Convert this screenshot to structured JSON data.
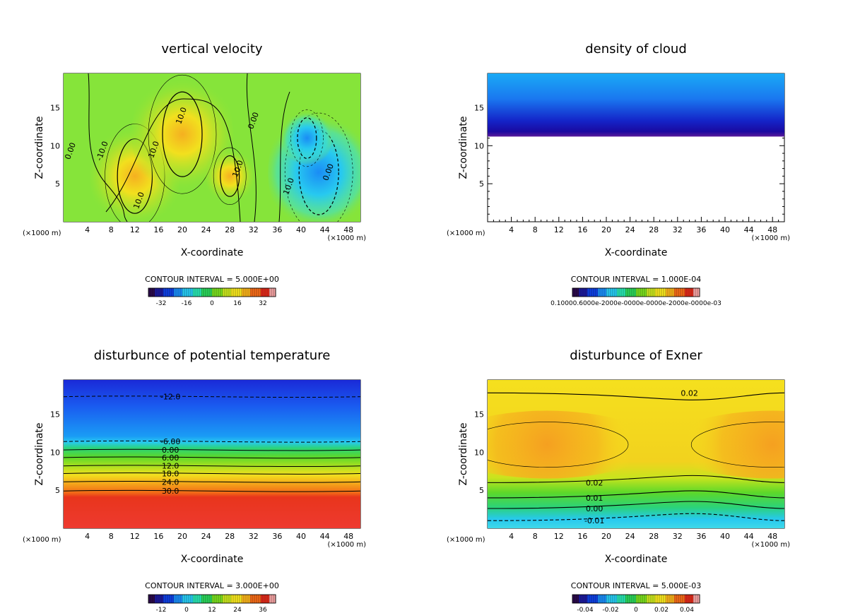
{
  "chart_data": [
    {
      "type": "heatmap",
      "title": "vertical velocity",
      "xlabel": "X-coordinate",
      "ylabel": "Z-coordinate",
      "x_unit": "(×1000 m)",
      "xlim": [
        0,
        50
      ],
      "ylim": [
        0,
        19.5
      ],
      "x_ticks": [
        4,
        8,
        12,
        16,
        20,
        24,
        28,
        32,
        36,
        40,
        44,
        48
      ],
      "y_ticks": [
        5,
        10,
        15
      ],
      "contour_interval": "CONTOUR INTERVAL = 5.000E+00",
      "colorbar_range": [
        -40,
        40
      ],
      "colorbar_ticks": [
        "-32",
        "-16",
        "0",
        "16",
        "32"
      ],
      "contour_labels": [
        "10.0",
        "10.0",
        "0.00",
        "10.0",
        "0.00",
        "-10.0",
        "10.0",
        "0.00",
        "10.0"
      ],
      "features": [
        {
          "kind": "updraft",
          "x": 12,
          "z": 6,
          "value": 22
        },
        {
          "kind": "updraft",
          "x": 20,
          "z": 11.5,
          "value": 25
        },
        {
          "kind": "updraft",
          "x": 28,
          "z": 6,
          "value": 12
        },
        {
          "kind": "downdraft",
          "x": 43,
          "z": 6.5,
          "value": -25
        },
        {
          "kind": "downdraft",
          "x": 41,
          "z": 11,
          "value": -12
        }
      ]
    },
    {
      "type": "heatmap",
      "title": "density of cloud",
      "xlabel": "X-coordinate",
      "ylabel": "Z-coordinate",
      "x_unit": "(×1000 m)",
      "xlim": [
        0,
        50
      ],
      "ylim": [
        0,
        19.5
      ],
      "x_ticks": [
        4,
        8,
        12,
        16,
        20,
        24,
        28,
        32,
        36,
        40,
        44,
        48
      ],
      "y_ticks": [
        5,
        10,
        15
      ],
      "contour_interval": "CONTOUR INTERVAL = 1.000E-04",
      "colorbar_ticks_text": "0.10000.6000e-2000e-0000e-0000e-2000e-0000e-03",
      "cloud_layer": {
        "z_min": 11.2,
        "z_max": 19.5
      }
    },
    {
      "type": "heatmap",
      "title": "disturbunce of potential temperature",
      "xlabel": "X-coordinate",
      "ylabel": "Z-coordinate",
      "x_unit": "(×1000 m)",
      "xlim": [
        0,
        50
      ],
      "ylim": [
        0,
        19.5
      ],
      "x_ticks": [
        4,
        8,
        12,
        16,
        20,
        24,
        28,
        32,
        36,
        40,
        44,
        48
      ],
      "y_ticks": [
        5,
        10,
        15
      ],
      "contour_interval": "CONTOUR INTERVAL = 3.000E+00",
      "colorbar_ticks": [
        "-12",
        "0",
        "12",
        "24",
        "36"
      ],
      "contour_labels": [
        {
          "text": "-12.0",
          "z": 17.3
        },
        {
          "text": "-6.00",
          "z": 11.4
        },
        {
          "text": "0.00",
          "z": 10.3
        },
        {
          "text": "6.00",
          "z": 9.3
        },
        {
          "text": "12.0",
          "z": 8.2
        },
        {
          "text": "18.0",
          "z": 7.2
        },
        {
          "text": "24.0",
          "z": 6.1
        },
        {
          "text": "30.0",
          "z": 4.9
        }
      ]
    },
    {
      "type": "heatmap",
      "title": "disturbunce of Exner",
      "xlabel": "X-coordinate",
      "ylabel": "Z-coordinate",
      "x_unit": "(×1000 m)",
      "xlim": [
        0,
        50
      ],
      "ylim": [
        0,
        19.5
      ],
      "x_ticks": [
        4,
        8,
        12,
        16,
        20,
        24,
        28,
        32,
        36,
        40,
        44,
        48
      ],
      "y_ticks": [
        5,
        10,
        15
      ],
      "contour_interval": "CONTOUR INTERVAL = 5.000E-03",
      "colorbar_ticks": [
        "-0.04",
        "-0.02",
        "0",
        "0.02",
        "0.04"
      ],
      "contour_labels": [
        {
          "text": "0.02",
          "z": 17.8
        },
        {
          "text": "0.02",
          "z": 6.0
        },
        {
          "text": "0.01",
          "z": 4.0
        },
        {
          "text": "0.00",
          "z": 2.6
        },
        {
          "text": "-0.01",
          "z": 1.0
        }
      ]
    }
  ]
}
